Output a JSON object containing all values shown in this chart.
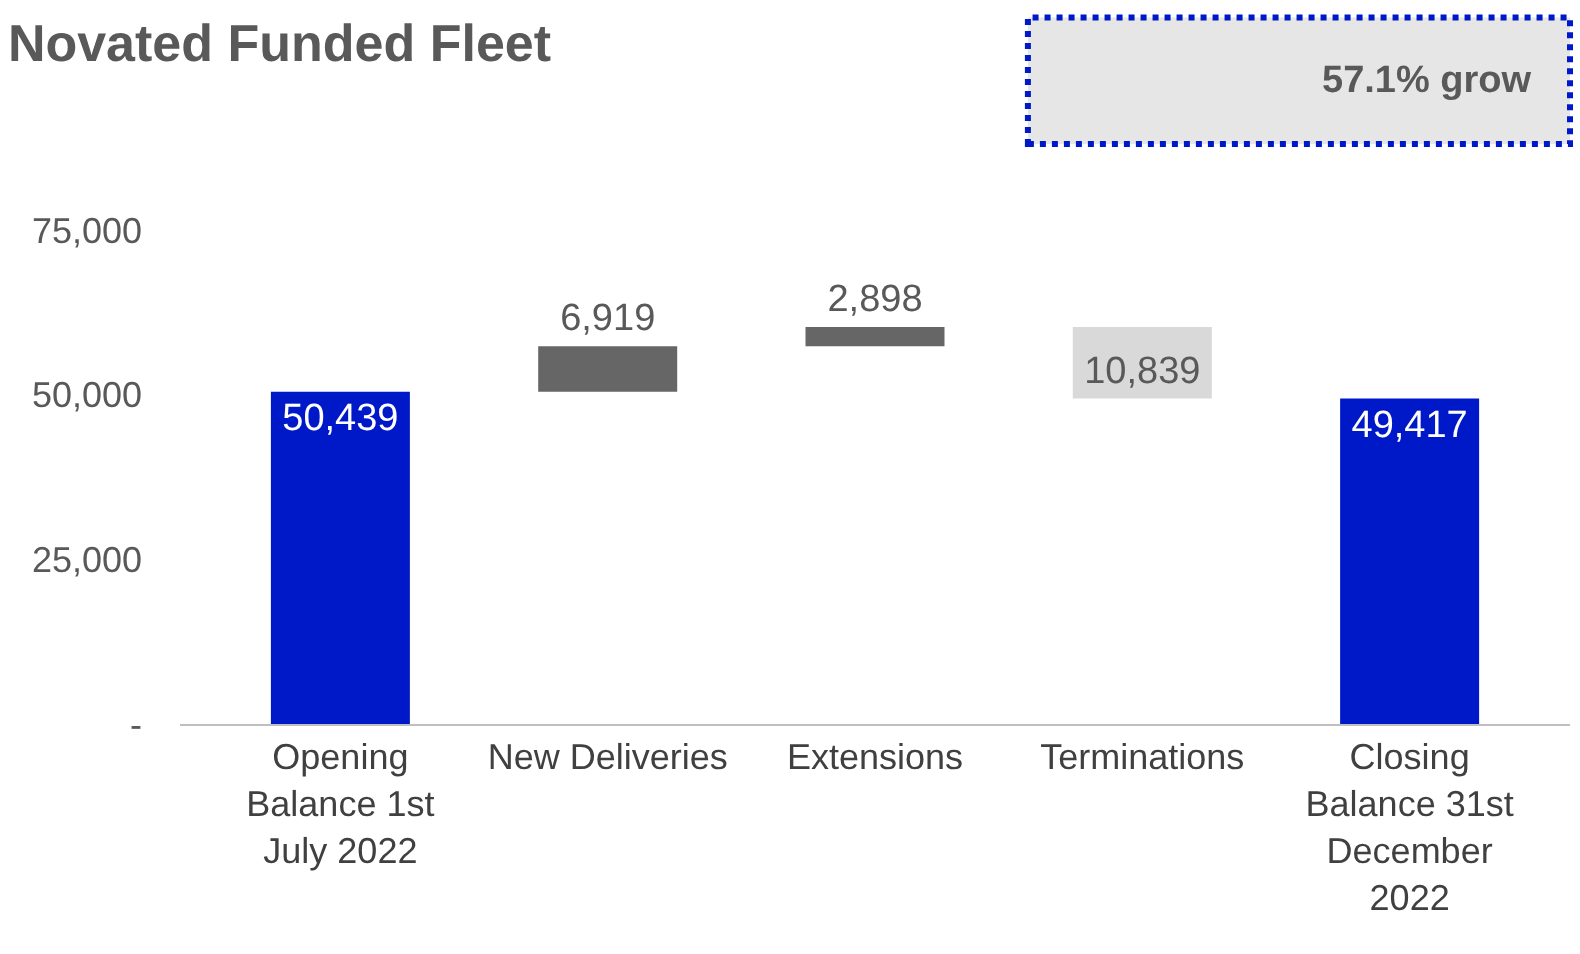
{
  "chart_data": {
    "type": "bar",
    "title": "Novated Funded Fleet",
    "categories": [
      "Opening\nBalance 1st\nJuly 2022",
      "New Deliveries",
      "Extensions",
      "Terminations",
      "Closing\nBalance 31st\nDecember\n2022"
    ],
    "values": [
      50439,
      6919,
      2898,
      -10839,
      49417
    ],
    "base": [
      0,
      50439,
      57358,
      60256,
      0
    ],
    "colors": [
      "#0019c8",
      "#666666",
      "#666666",
      "#d9d9d9",
      "#0019c8"
    ],
    "value_labels": [
      "50,439",
      "6,919",
      "2,898",
      "10,839",
      "49,417"
    ],
    "ylim": [
      0,
      75000
    ],
    "yticks": [
      {
        "value": 0,
        "label": "-"
      },
      {
        "value": 25000,
        "label": "25,000"
      },
      {
        "value": 50000,
        "label": "50,000"
      },
      {
        "value": 75000,
        "label": "75,000"
      }
    ],
    "annotations": [
      "57.1% grow"
    ]
  }
}
